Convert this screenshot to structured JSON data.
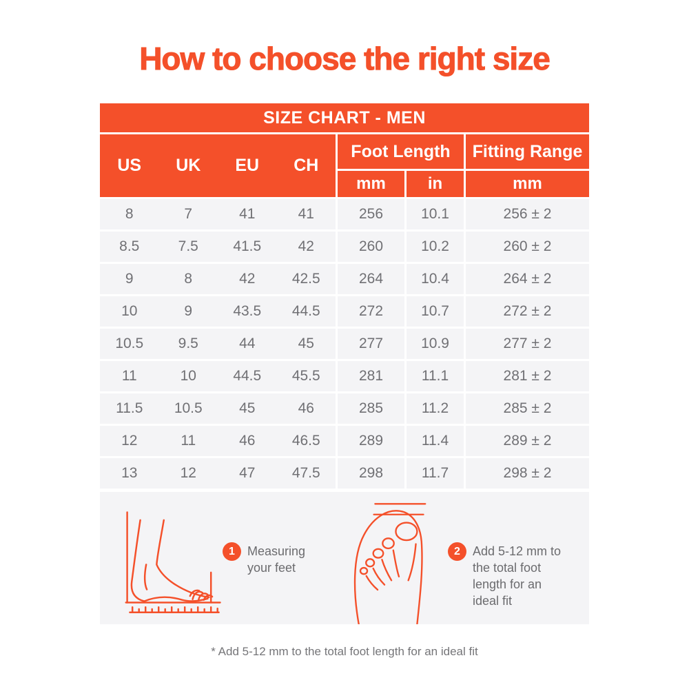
{
  "title": "How to choose the right size",
  "colors": {
    "accent": "#F4502A",
    "row_background": "#F4F4F6",
    "body_text": "#707074"
  },
  "table": {
    "banner": "SIZE CHART - MEN",
    "size_columns": [
      "US",
      "UK",
      "EU",
      "CH"
    ],
    "foot_length_label": "Foot Length",
    "fitting_range_label": "Fitting Range",
    "units": {
      "foot_mm": "mm",
      "foot_in": "in",
      "fitting_mm": "mm"
    },
    "rows": [
      [
        "8",
        "7",
        "41",
        "41",
        "256",
        "10.1",
        "256 ± 2"
      ],
      [
        "8.5",
        "7.5",
        "41.5",
        "42",
        "260",
        "10.2",
        "260 ± 2"
      ],
      [
        "9",
        "8",
        "42",
        "42.5",
        "264",
        "10.4",
        "264 ± 2"
      ],
      [
        "10",
        "9",
        "43.5",
        "44.5",
        "272",
        "10.7",
        "272 ± 2"
      ],
      [
        "10.5",
        "9.5",
        "44",
        "45",
        "277",
        "10.9",
        "277 ± 2"
      ],
      [
        "11",
        "10",
        "44.5",
        "45.5",
        "281",
        "11.1",
        "281 ± 2"
      ],
      [
        "11.5",
        "10.5",
        "45",
        "46",
        "285",
        "11.2",
        "285 ± 2"
      ],
      [
        "12",
        "11",
        "46",
        "46.5",
        "289",
        "11.4",
        "289 ± 2"
      ],
      [
        "13",
        "12",
        "47",
        "47.5",
        "298",
        "11.7",
        "298 ± 2"
      ]
    ]
  },
  "instructions": {
    "step1": {
      "number": "1",
      "text": "Measuring your feet"
    },
    "step2": {
      "number": "2",
      "text": "Add 5-12 mm to the total foot length for an ideal fit"
    }
  },
  "footnote": "* Add 5-12 mm to the total foot length for an ideal fit"
}
